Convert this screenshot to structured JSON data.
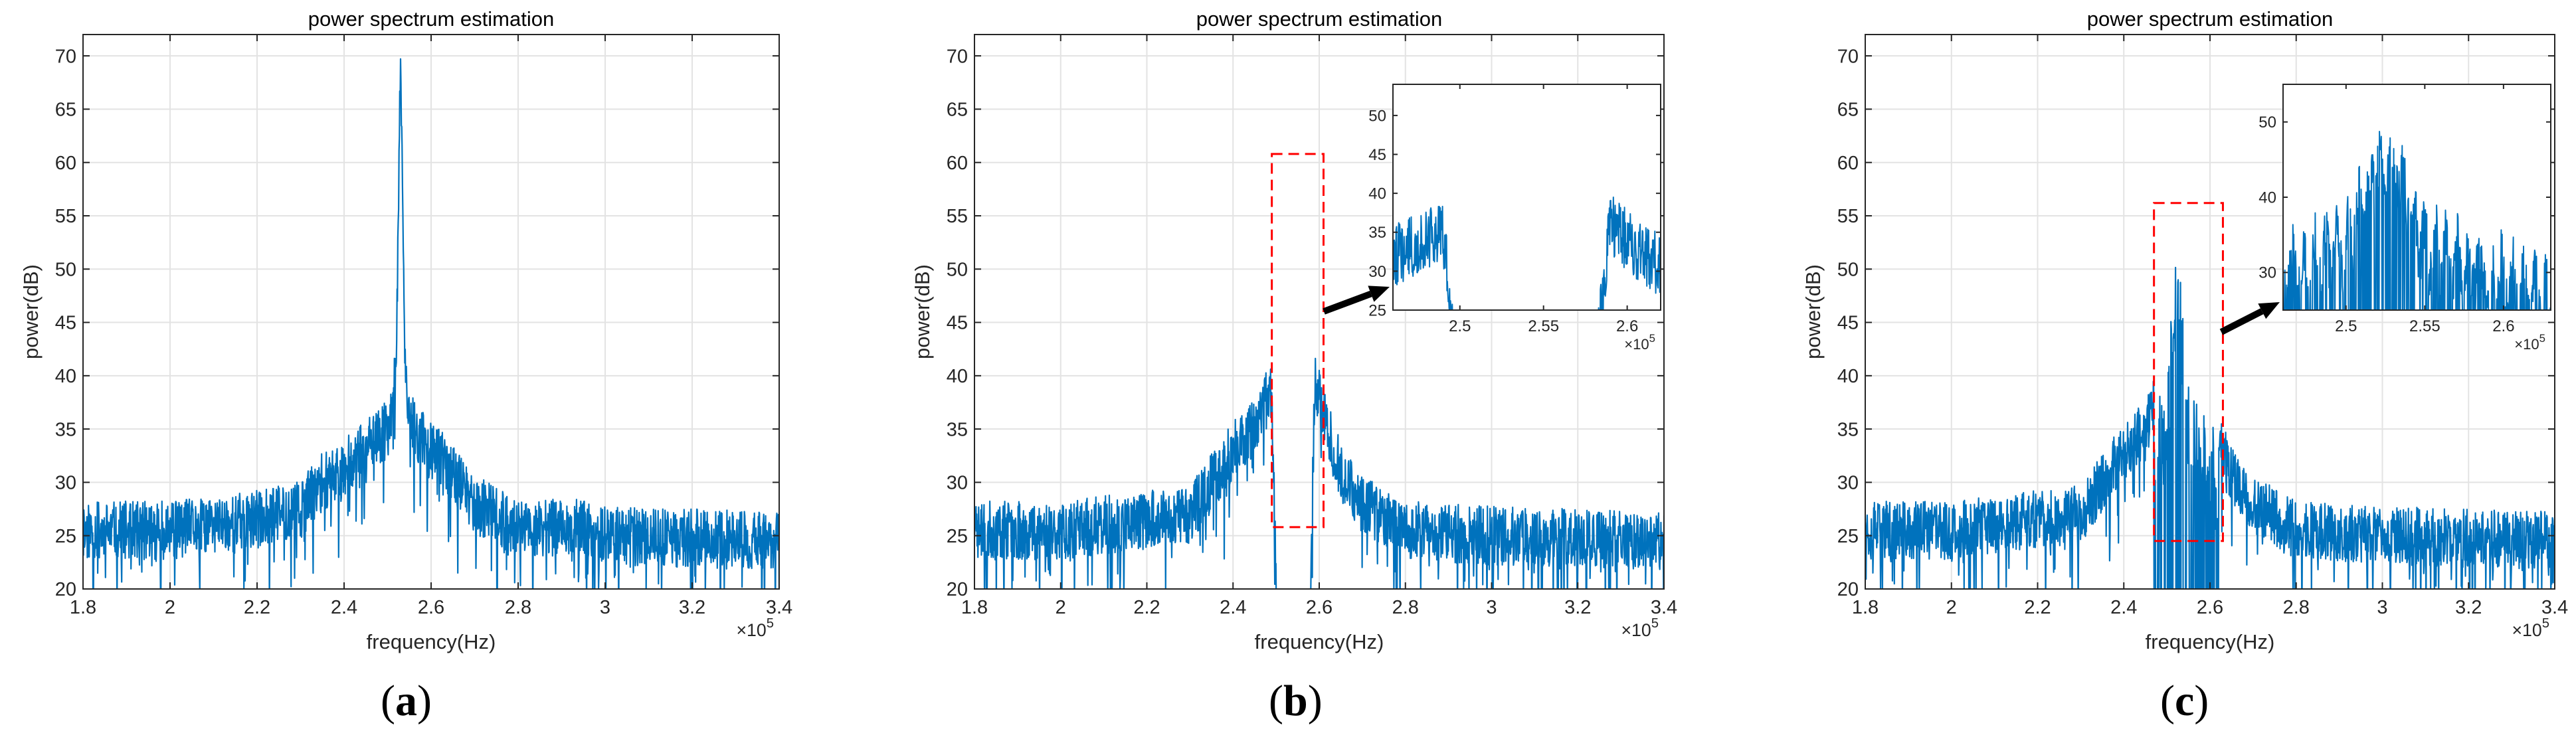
{
  "panels": [
    {
      "id": "a",
      "caption": "a",
      "chart_data": {
        "type": "line",
        "title": "power spectrum estimation",
        "xlabel": "frequency(Hz)",
        "ylabel": "power(dB)",
        "x_exponent_label": "×10",
        "x_exponent": "5",
        "xlim": [
          1.8,
          3.4
        ],
        "ylim": [
          20,
          72
        ],
        "xticks": [
          1.8,
          2,
          2.2,
          2.4,
          2.6,
          2.8,
          3,
          3.2,
          3.4
        ],
        "xtick_labels": [
          "1.8",
          "2",
          "2.2",
          "2.4",
          "2.6",
          "2.8",
          "3",
          "3.2",
          "3.4"
        ],
        "yticks": [
          20,
          25,
          30,
          35,
          40,
          45,
          50,
          55,
          60,
          65,
          70
        ],
        "ytick_labels": [
          "20",
          "25",
          "30",
          "35",
          "40",
          "45",
          "50",
          "55",
          "60",
          "65",
          "70"
        ],
        "grid": true,
        "series": [
          {
            "name": "spectrum",
            "color": "#0072BD",
            "noise_floor_db": 25,
            "profile": [
              [
                1.8,
                25.5
              ],
              [
                2.0,
                25.5
              ],
              [
                2.2,
                26.5
              ],
              [
                2.3,
                27.5
              ],
              [
                2.35,
                30
              ],
              [
                2.4,
                31.5
              ],
              [
                2.45,
                33
              ],
              [
                2.5,
                35
              ],
              [
                2.52,
                40
              ],
              [
                2.53,
                70.5
              ],
              [
                2.54,
                40
              ],
              [
                2.56,
                35
              ],
              [
                2.6,
                33
              ],
              [
                2.65,
                31
              ],
              [
                2.7,
                28
              ],
              [
                2.8,
                25.5
              ],
              [
                2.9,
                26
              ],
              [
                3.0,
                25
              ],
              [
                3.4,
                24.5
              ]
            ]
          }
        ]
      }
    },
    {
      "id": "b",
      "caption": "b",
      "chart_data": {
        "type": "line",
        "title": "power spectrum estimation",
        "xlabel": "frequency(Hz)",
        "ylabel": "power(dB)",
        "x_exponent_label": "×10",
        "x_exponent": "5",
        "xlim": [
          1.8,
          3.4
        ],
        "ylim": [
          20,
          72
        ],
        "xticks": [
          1.8,
          2,
          2.2,
          2.4,
          2.6,
          2.8,
          3,
          3.2,
          3.4
        ],
        "xtick_labels": [
          "1.8",
          "2",
          "2.2",
          "2.4",
          "2.6",
          "2.8",
          "3",
          "3.2",
          "3.4"
        ],
        "yticks": [
          20,
          25,
          30,
          35,
          40,
          45,
          50,
          55,
          60,
          65,
          70
        ],
        "ytick_labels": [
          "20",
          "25",
          "30",
          "35",
          "40",
          "45",
          "50",
          "55",
          "60",
          "65",
          "70"
        ],
        "grid": true,
        "series": [
          {
            "name": "spectrum",
            "color": "#0072BD",
            "noise_floor_db": 25,
            "notch": [
              2.5,
              2.58
            ],
            "profile": [
              [
                1.8,
                25.5
              ],
              [
                2.0,
                25.5
              ],
              [
                2.2,
                26.5
              ],
              [
                2.3,
                27
              ],
              [
                2.35,
                30
              ],
              [
                2.4,
                33
              ],
              [
                2.45,
                35
              ],
              [
                2.49,
                39
              ],
              [
                2.5,
                20
              ],
              [
                2.58,
                20
              ],
              [
                2.59,
                40
              ],
              [
                2.61,
                36
              ],
              [
                2.65,
                31
              ],
              [
                2.7,
                28
              ],
              [
                2.8,
                25.5
              ],
              [
                3.0,
                25
              ],
              [
                3.4,
                24.5
              ]
            ]
          }
        ],
        "highlight_box": {
          "x": [
            2.49,
            2.61
          ],
          "y": [
            25.8,
            60.8
          ],
          "color": "#FF0000"
        },
        "inset": {
          "xlim": [
            2.46,
            2.62
          ],
          "ylim": [
            25,
            54
          ],
          "xticks": [
            2.5,
            2.55,
            2.6
          ],
          "xtick_labels": [
            "2.5",
            "2.55",
            "2.6"
          ],
          "yticks": [
            25,
            30,
            35,
            40,
            45,
            50
          ],
          "ytick_labels": [
            "25",
            "30",
            "35",
            "40",
            "45",
            "50"
          ],
          "x_exponent_label": "×10",
          "x_exponent": "5"
        }
      }
    },
    {
      "id": "c",
      "caption": "c",
      "chart_data": {
        "type": "line",
        "title": "power spectrum estimation",
        "xlabel": "frequency(Hz)",
        "ylabel": "power(dB)",
        "x_exponent_label": "×10",
        "x_exponent": "5",
        "xlim": [
          1.8,
          3.4
        ],
        "ylim": [
          20,
          72
        ],
        "xticks": [
          1.8,
          2,
          2.2,
          2.4,
          2.6,
          2.8,
          3,
          3.2,
          3.4
        ],
        "xtick_labels": [
          "1.8",
          "2",
          "2.2",
          "2.4",
          "2.6",
          "2.8",
          "3",
          "3.2",
          "3.4"
        ],
        "yticks": [
          20,
          25,
          30,
          35,
          40,
          45,
          50,
          55,
          60,
          65,
          70
        ],
        "ytick_labels": [
          "20",
          "25",
          "30",
          "35",
          "40",
          "45",
          "50",
          "55",
          "60",
          "65",
          "70"
        ],
        "grid": true,
        "series": [
          {
            "name": "spectrum",
            "color": "#0072BD",
            "noise_floor_db": 25,
            "sparse_band": [
              2.47,
              2.62
            ],
            "profile": [
              [
                1.8,
                25.5
              ],
              [
                2.0,
                25.5
              ],
              [
                2.2,
                26.5
              ],
              [
                2.3,
                27
              ],
              [
                2.35,
                30
              ],
              [
                2.4,
                33
              ],
              [
                2.45,
                35
              ],
              [
                2.5,
                40
              ],
              [
                2.52,
                51
              ],
              [
                2.53,
                51.5
              ],
              [
                2.55,
                40
              ],
              [
                2.6,
                36
              ],
              [
                2.65,
                31
              ],
              [
                2.7,
                28
              ],
              [
                2.8,
                25.5
              ],
              [
                3.0,
                25
              ],
              [
                3.4,
                24.5
              ]
            ]
          }
        ],
        "highlight_box": {
          "x": [
            2.47,
            2.63
          ],
          "y": [
            24.5,
            56.2
          ],
          "color": "#FF0000"
        },
        "inset": {
          "xlim": [
            2.46,
            2.63
          ],
          "ylim": [
            25,
            55
          ],
          "xticks": [
            2.5,
            2.55,
            2.6
          ],
          "xtick_labels": [
            "2.5",
            "2.55",
            "2.6"
          ],
          "yticks": [
            30,
            40,
            50
          ],
          "ytick_labels": [
            "30",
            "40",
            "50"
          ],
          "x_exponent_label": "×10",
          "x_exponent": "5"
        }
      }
    }
  ]
}
